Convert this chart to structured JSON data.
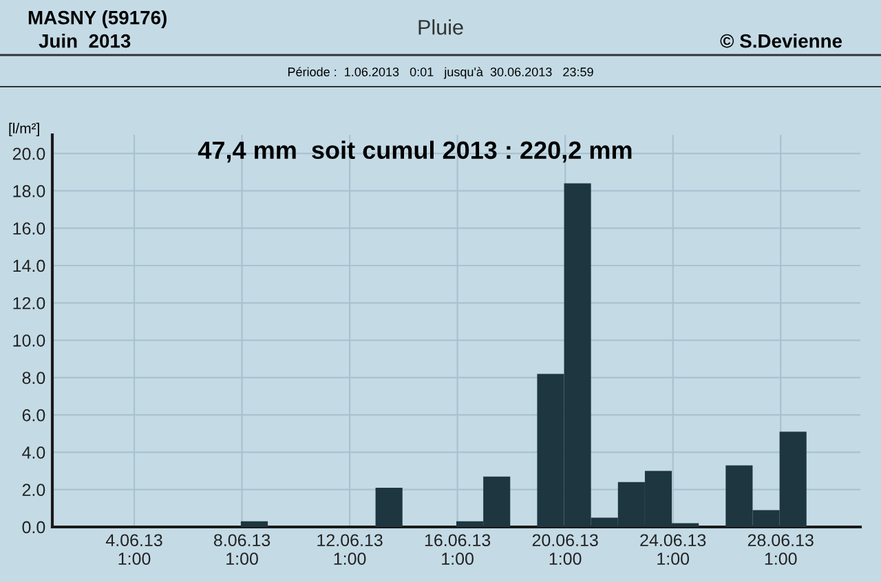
{
  "chart_data": {
    "type": "bar",
    "title": "Pluie",
    "subtitle": "47,4 mm  soit cumul 2013 : 220,2 mm",
    "ylabel": "[l/m²]",
    "annotations": [
      "MASNY (59176)",
      "Juin  2013",
      "© S.Devienne",
      "Période :  1.06.2013   0:01   jusqu'à  30.06.2013   23:59"
    ],
    "x": [
      "2013-06-08T12:00",
      "2013-06-13T12:00",
      "2013-06-16T12:00",
      "2013-06-17T12:00",
      "2013-06-19T12:00",
      "2013-06-20T12:00",
      "2013-06-21T12:00",
      "2013-06-22T12:00",
      "2013-06-23T12:00",
      "2013-06-24T12:00",
      "2013-06-26T12:00",
      "2013-06-27T12:00",
      "2013-06-28T12:00"
    ],
    "values": [
      0.3,
      2.1,
      0.3,
      2.7,
      8.2,
      18.4,
      0.5,
      2.4,
      3.0,
      0.2,
      3.3,
      0.9,
      5.1
    ],
    "color": "#1e3640",
    "xlim": [
      "2013-06-01T00:00",
      "2013-07-01T00:00"
    ],
    "xticks": [
      {
        "value": "2013-06-04T01:00",
        "label": "4.06.13\n1:00"
      },
      {
        "value": "2013-06-08T01:00",
        "label": "8.06.13\n1:00"
      },
      {
        "value": "2013-06-12T01:00",
        "label": "12.06.13\n1:00"
      },
      {
        "value": "2013-06-16T01:00",
        "label": "16.06.13\n1:00"
      },
      {
        "value": "2013-06-20T01:00",
        "label": "20.06.13\n1:00"
      },
      {
        "value": "2013-06-24T01:00",
        "label": "24.06.13\n1:00"
      },
      {
        "value": "2013-06-28T01:00",
        "label": "28.06.13\n1:00"
      }
    ],
    "ylim": [
      0,
      21
    ],
    "yticks": [
      {
        "value": 0,
        "label": "0.0"
      },
      {
        "value": 2,
        "label": "2.0"
      },
      {
        "value": 4,
        "label": "4.0"
      },
      {
        "value": 6,
        "label": "6.0"
      },
      {
        "value": 8,
        "label": "8.0"
      },
      {
        "value": 10,
        "label": "10.0"
      },
      {
        "value": 12,
        "label": "12.0"
      },
      {
        "value": 14,
        "label": "14.0"
      },
      {
        "value": 16,
        "label": "16.0"
      },
      {
        "value": 18,
        "label": "18.0"
      },
      {
        "value": 20,
        "label": "20.0"
      }
    ],
    "grid": true
  }
}
